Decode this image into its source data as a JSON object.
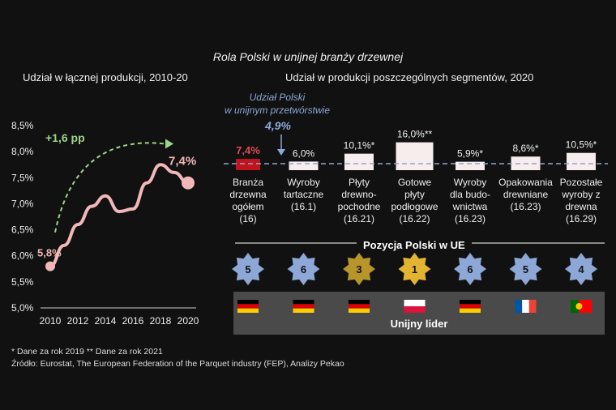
{
  "title": "Rola Polski w unijnej branży drzewnej",
  "left_subtitle": "Udział w łącznej produkcji, 2010-20",
  "right_subtitle": "Udział w produkcji poszczególnych segmentów, 2020",
  "eu_note_line1": "Udział Polski",
  "eu_note_line2": "w unijnym przetwórstwie",
  "eu_value": "4,9%",
  "rank_title": "Pozycja Polski w UE",
  "leader_label": "Unijny lider",
  "footnote1": "* Dane za rok 2019    ** Dane za rok 2021",
  "footnote2": "Źródło: Eurostat, The European Federation of the Parquet industry (FEP), Analizy Pekao",
  "colors": {
    "line": "#f2b8b8",
    "highlight_bar": "#c0141c",
    "bar": "#f7eded",
    "eu_line": "#8da7d6",
    "arrow": "#9fd48a",
    "star_blue": "#8da7d6",
    "star_gold": "#b8952b"
  },
  "chart_data": [
    {
      "type": "line",
      "x": [
        2010,
        2012,
        2014,
        2016,
        2018,
        2020
      ],
      "y_labels": [
        "5,0%",
        "5,5%",
        "6,0%",
        "6,5%",
        "7,0%",
        "7,5%",
        "8,0%",
        "8,5%"
      ],
      "ylim": [
        5.0,
        8.5
      ],
      "points": [
        [
          2010,
          5.8
        ],
        [
          2011,
          6.2
        ],
        [
          2012,
          6.6
        ],
        [
          2013,
          6.95
        ],
        [
          2014,
          7.15
        ],
        [
          2015,
          6.85
        ],
        [
          2016,
          6.9
        ],
        [
          2017,
          7.4
        ],
        [
          2018,
          7.75
        ],
        [
          2019,
          7.6
        ],
        [
          2020,
          7.4
        ]
      ],
      "start_label": "5,8%",
      "end_label": "7,4%",
      "change_label": "+1,6 pp"
    },
    {
      "type": "bar",
      "eu_average": 4.9,
      "segments": [
        {
          "label_lines": [
            "Branża",
            "drzewna",
            "ogółem",
            "(16)"
          ],
          "value": 7.4,
          "value_label": "7,4%",
          "rank": "5",
          "leader": "DE",
          "highlight": true
        },
        {
          "label_lines": [
            "Wyroby",
            "tartaczne",
            "(16.1)"
          ],
          "value": 6.0,
          "value_label": "6,0%",
          "rank": "6",
          "leader": "DE",
          "highlight": false
        },
        {
          "label_lines": [
            "Płyty",
            "drewno-",
            "pochodne",
            "(16.21)"
          ],
          "value": 10.1,
          "value_label": "10,1%*",
          "rank": "3",
          "leader": "DE",
          "highlight": false
        },
        {
          "label_lines": [
            "Gotowe",
            "płyty",
            "podłogowe",
            "(16.22)"
          ],
          "value": 16.0,
          "value_label": "16,0%**",
          "rank": "1",
          "leader": "PL",
          "highlight": false
        },
        {
          "label_lines": [
            "Wyroby",
            "dla budo-",
            "wnictwa",
            "(16.23)"
          ],
          "value": 5.9,
          "value_label": "5,9%*",
          "rank": "6",
          "leader": "DE",
          "highlight": false
        },
        {
          "label_lines": [
            "Opakowania",
            "drewniane",
            "(16.23)"
          ],
          "value": 8.6,
          "value_label": "8,6%*",
          "rank": "5",
          "leader": "FR",
          "highlight": false
        },
        {
          "label_lines": [
            "Pozostałe",
            "wyroby z",
            "drewna",
            "(16.29)"
          ],
          "value": 10.5,
          "value_label": "10,5%*",
          "rank": "4",
          "leader": "PT",
          "highlight": false
        }
      ]
    }
  ]
}
